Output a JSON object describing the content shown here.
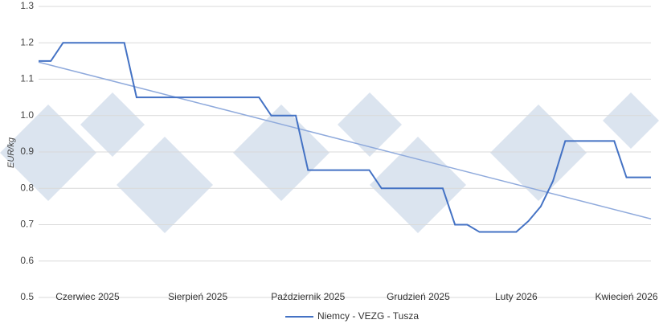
{
  "chart_data": {
    "type": "line",
    "y_label": "EUR/kg",
    "categories": [
      null,
      null,
      null,
      null,
      "Czerwiec 2025",
      null,
      null,
      null,
      null,
      null,
      null,
      null,
      null,
      "Sierpień 2025",
      null,
      null,
      null,
      null,
      null,
      null,
      null,
      null,
      "Październik 2025",
      null,
      null,
      null,
      null,
      null,
      null,
      null,
      null,
      "Grudzień 2025",
      null,
      null,
      null,
      null,
      null,
      null,
      null,
      "Luty 2026",
      null,
      null,
      null,
      null,
      null,
      null,
      null,
      null,
      "Kwiecień 2026",
      null,
      null
    ],
    "series": [
      {
        "name": "Niemcy - VEZG - Tusza",
        "color": "#4472c4",
        "values": [
          1.15,
          1.15,
          1.2,
          1.2,
          1.2,
          1.2,
          1.2,
          1.2,
          1.05,
          1.05,
          1.05,
          1.05,
          1.05,
          1.05,
          1.05,
          1.05,
          1.05,
          1.05,
          1.05,
          1.0,
          1.0,
          1.0,
          0.85,
          0.85,
          0.85,
          0.85,
          0.85,
          0.85,
          0.8,
          0.8,
          0.8,
          0.8,
          0.8,
          0.8,
          0.7,
          0.7,
          0.68,
          0.68,
          0.68,
          0.68,
          0.71,
          0.75,
          0.82,
          0.93,
          0.93,
          0.93,
          0.93,
          0.93,
          0.83,
          0.83,
          0.83
        ]
      }
    ],
    "trend": {
      "color": "#8faadc",
      "start": 1.147,
      "end": 0.716
    },
    "ylim": [
      0.5,
      1.3
    ],
    "yticks": [
      0.5,
      0.6,
      0.7,
      0.8,
      0.9,
      {
        "value": 1,
        "label": "1.0"
      },
      1.1,
      1.2,
      1.3
    ],
    "grid": true,
    "legend": "bottom"
  }
}
